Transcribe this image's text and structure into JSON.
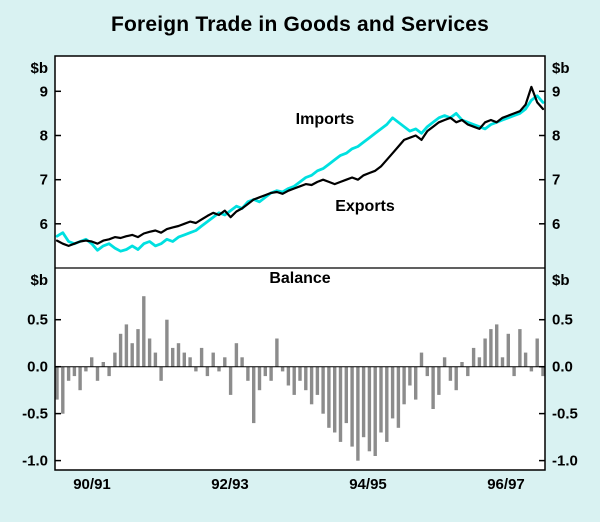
{
  "title": "Foreign Trade in Goods and Services",
  "chart_data": [
    {
      "type": "line",
      "unit": "$b",
      "x_labels": [
        "90/91",
        "92/93",
        "94/95",
        "96/97"
      ],
      "ylim": [
        5.0,
        9.8
      ],
      "yticks": [
        9,
        8,
        7,
        6
      ],
      "ytick_labels": [
        "9",
        "8",
        "7",
        "6"
      ],
      "grid": "off",
      "legend": "inline-annotations",
      "series": [
        {
          "name": "Imports",
          "color": "#00e0e0",
          "values": [
            5.72,
            5.8,
            5.6,
            5.55,
            5.6,
            5.65,
            5.55,
            5.4,
            5.5,
            5.55,
            5.45,
            5.38,
            5.42,
            5.5,
            5.42,
            5.55,
            5.6,
            5.5,
            5.55,
            5.65,
            5.6,
            5.7,
            5.75,
            5.8,
            5.85,
            5.95,
            6.05,
            6.15,
            6.25,
            6.2,
            6.3,
            6.4,
            6.35,
            6.5,
            6.55,
            6.5,
            6.6,
            6.7,
            6.75,
            6.72,
            6.8,
            6.85,
            6.95,
            7.05,
            7.1,
            7.2,
            7.25,
            7.35,
            7.45,
            7.55,
            7.6,
            7.7,
            7.75,
            7.85,
            7.95,
            8.05,
            8.15,
            8.25,
            8.4,
            8.3,
            8.2,
            8.1,
            8.15,
            8.05,
            8.2,
            8.3,
            8.4,
            8.45,
            8.4,
            8.5,
            8.35,
            8.3,
            8.25,
            8.2,
            8.15,
            8.25,
            8.3,
            8.35,
            8.4,
            8.45,
            8.5,
            8.6,
            8.8,
            8.9,
            8.75
          ]
        },
        {
          "name": "Exports",
          "color": "#000000",
          "values": [
            5.62,
            5.55,
            5.5,
            5.55,
            5.6,
            5.62,
            5.6,
            5.55,
            5.62,
            5.65,
            5.7,
            5.68,
            5.72,
            5.75,
            5.7,
            5.78,
            5.82,
            5.85,
            5.8,
            5.88,
            5.92,
            5.95,
            6.0,
            6.05,
            6.02,
            6.1,
            6.18,
            6.25,
            6.2,
            6.3,
            6.15,
            6.28,
            6.35,
            6.45,
            6.55,
            6.6,
            6.65,
            6.7,
            6.72,
            6.68,
            6.75,
            6.8,
            6.85,
            6.9,
            6.88,
            6.95,
            7.0,
            6.95,
            6.9,
            6.95,
            7.0,
            7.05,
            7.0,
            7.1,
            7.15,
            7.2,
            7.3,
            7.45,
            7.6,
            7.75,
            7.9,
            7.95,
            8.0,
            7.9,
            8.1,
            8.2,
            8.3,
            8.35,
            8.4,
            8.3,
            8.35,
            8.25,
            8.2,
            8.15,
            8.3,
            8.35,
            8.3,
            8.4,
            8.45,
            8.5,
            8.55,
            8.7,
            9.1,
            8.75,
            8.6
          ]
        }
      ]
    },
    {
      "type": "bar",
      "title": "Balance",
      "unit": "$b",
      "ylim": [
        -1.1,
        1.05
      ],
      "yticks": [
        0.5,
        0.0,
        -0.5,
        -1.0
      ],
      "ytick_labels": [
        "0.5",
        "0.0",
        "-0.5",
        "-1.0"
      ],
      "grid": "off",
      "bar_color": "#8c8c8c",
      "values": [
        -0.35,
        -0.5,
        -0.15,
        -0.1,
        -0.25,
        -0.05,
        0.1,
        -0.15,
        0.05,
        -0.1,
        0.15,
        0.35,
        0.45,
        0.25,
        0.4,
        0.75,
        0.3,
        0.15,
        -0.15,
        0.5,
        0.2,
        0.25,
        0.15,
        0.1,
        -0.05,
        0.2,
        -0.1,
        0.15,
        -0.05,
        0.1,
        -0.3,
        0.25,
        0.1,
        -0.15,
        -0.6,
        -0.25,
        -0.1,
        -0.15,
        0.3,
        -0.05,
        -0.2,
        -0.3,
        -0.15,
        -0.25,
        -0.4,
        -0.3,
        -0.5,
        -0.65,
        -0.7,
        -0.8,
        -0.6,
        -0.85,
        -1.0,
        -0.75,
        -0.9,
        -0.95,
        -0.7,
        -0.8,
        -0.55,
        -0.65,
        -0.4,
        -0.2,
        -0.35,
        0.15,
        -0.1,
        -0.45,
        -0.3,
        0.1,
        -0.15,
        -0.25,
        0.05,
        -0.1,
        0.2,
        0.1,
        0.3,
        0.4,
        0.45,
        0.1,
        0.35,
        -0.1,
        0.4,
        0.15,
        -0.05,
        0.3,
        -0.1
      ]
    }
  ]
}
